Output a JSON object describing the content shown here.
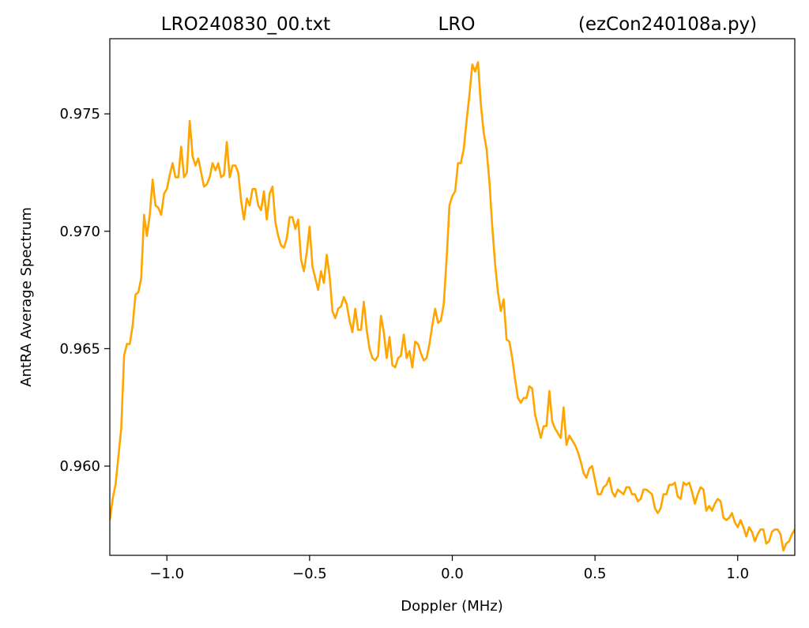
{
  "chart_data": {
    "type": "line",
    "title_left": "LRO240830_00.txt",
    "title_center": "LRO",
    "title_right": "(ezCon240108a.py)",
    "xlabel": "Doppler (MHz)",
    "ylabel": "AntRA Average Spectrum",
    "xlim": [
      -1.2,
      1.2
    ],
    "ylim": [
      0.9562,
      0.9782
    ],
    "x_ticks": [
      -1.0,
      -0.5,
      0.0,
      0.5,
      1.0
    ],
    "x_tick_labels": [
      "−1.0",
      "−0.5",
      "0.0",
      "0.5",
      "1.0"
    ],
    "y_ticks": [
      0.96,
      0.965,
      0.97,
      0.975
    ],
    "y_tick_labels": [
      "0.960",
      "0.965",
      "0.970",
      "0.975"
    ],
    "grid": false,
    "line_color": "#FFA500",
    "series": [
      {
        "x": [
          -1.2,
          -1.19,
          -1.18,
          -1.17,
          -1.16,
          -1.15,
          -1.14,
          -1.13,
          -1.12,
          -1.11,
          -1.1,
          -1.09,
          -1.08,
          -1.07,
          -1.06,
          -1.05,
          -1.04,
          -1.03,
          -1.02,
          -1.01,
          -1.0,
          -0.99,
          -0.98,
          -0.97,
          -0.96,
          -0.95,
          -0.94,
          -0.93,
          -0.92,
          -0.91,
          -0.9,
          -0.89,
          -0.88,
          -0.87,
          -0.86,
          -0.85,
          -0.84,
          -0.83,
          -0.82,
          -0.81,
          -0.8,
          -0.79,
          -0.78,
          -0.77,
          -0.76,
          -0.75,
          -0.74,
          -0.73,
          -0.72,
          -0.71,
          -0.7,
          -0.69,
          -0.68,
          -0.67,
          -0.66,
          -0.65,
          -0.64,
          -0.63,
          -0.62,
          -0.61,
          -0.6,
          -0.59,
          -0.58,
          -0.57,
          -0.56,
          -0.55,
          -0.54,
          -0.53,
          -0.52,
          -0.51,
          -0.5,
          -0.49,
          -0.48,
          -0.47,
          -0.46,
          -0.45,
          -0.44,
          -0.43,
          -0.42,
          -0.41,
          -0.4,
          -0.39,
          -0.38,
          -0.37,
          -0.36,
          -0.35,
          -0.34,
          -0.33,
          -0.32,
          -0.31,
          -0.3,
          -0.29,
          -0.28,
          -0.27,
          -0.26,
          -0.25,
          -0.24,
          -0.23,
          -0.22,
          -0.21,
          -0.2,
          -0.19,
          -0.18,
          -0.17,
          -0.16,
          -0.15,
          -0.14,
          -0.13,
          -0.12,
          -0.11,
          -0.1,
          -0.09,
          -0.08,
          -0.07,
          -0.06,
          -0.05,
          -0.04,
          -0.03,
          -0.02,
          -0.01,
          0.0,
          0.01,
          0.02,
          0.03,
          0.04,
          0.05,
          0.06,
          0.07,
          0.08,
          0.09,
          0.1,
          0.11,
          0.12,
          0.13,
          0.14,
          0.15,
          0.16,
          0.17,
          0.18,
          0.19,
          0.2,
          0.21,
          0.22,
          0.23,
          0.24,
          0.25,
          0.26,
          0.27,
          0.28,
          0.29,
          0.3,
          0.31,
          0.32,
          0.33,
          0.34,
          0.35,
          0.36,
          0.37,
          0.38,
          0.39,
          0.4,
          0.41,
          0.42,
          0.43,
          0.44,
          0.45,
          0.46,
          0.47,
          0.48,
          0.49,
          0.5,
          0.51,
          0.52,
          0.53,
          0.54,
          0.55,
          0.56,
          0.57,
          0.58,
          0.59,
          0.6,
          0.61,
          0.62,
          0.63,
          0.64,
          0.65,
          0.66,
          0.67,
          0.68,
          0.69,
          0.7,
          0.71,
          0.72,
          0.73,
          0.74,
          0.75,
          0.76,
          0.77,
          0.78,
          0.79,
          0.8,
          0.81,
          0.82,
          0.83,
          0.84,
          0.85,
          0.86,
          0.87,
          0.88,
          0.89,
          0.9,
          0.91,
          0.92,
          0.93,
          0.94,
          0.95,
          0.96,
          0.97,
          0.98,
          0.99,
          1.0,
          1.01,
          1.02,
          1.03,
          1.04,
          1.05,
          1.06,
          1.07,
          1.08,
          1.09,
          1.1,
          1.11,
          1.12,
          1.13,
          1.14,
          1.15,
          1.16,
          1.17,
          1.18,
          1.19,
          1.2
        ],
        "values": [
          0.9577,
          0.9586,
          0.9592,
          0.9604,
          0.9616,
          0.9647,
          0.9652,
          0.9652,
          0.966,
          0.9673,
          0.9674,
          0.968,
          0.9707,
          0.9698,
          0.9707,
          0.9722,
          0.9711,
          0.971,
          0.9707,
          0.9716,
          0.9718,
          0.9724,
          0.9729,
          0.9723,
          0.9723,
          0.9736,
          0.9723,
          0.9725,
          0.9747,
          0.9732,
          0.9728,
          0.9731,
          0.9725,
          0.9719,
          0.972,
          0.9723,
          0.9729,
          0.9726,
          0.9729,
          0.9723,
          0.9724,
          0.9738,
          0.9723,
          0.9728,
          0.9728,
          0.9725,
          0.9713,
          0.9705,
          0.9714,
          0.9711,
          0.9718,
          0.9718,
          0.9711,
          0.9709,
          0.9717,
          0.9705,
          0.9716,
          0.9719,
          0.9704,
          0.9698,
          0.9694,
          0.9693,
          0.9697,
          0.9706,
          0.9706,
          0.9701,
          0.9705,
          0.9688,
          0.9683,
          0.9691,
          0.9702,
          0.9685,
          0.968,
          0.9675,
          0.9683,
          0.9678,
          0.969,
          0.9681,
          0.9666,
          0.9663,
          0.9667,
          0.9668,
          0.9672,
          0.9669,
          0.9662,
          0.9657,
          0.9667,
          0.9658,
          0.9658,
          0.967,
          0.9658,
          0.965,
          0.9646,
          0.9645,
          0.9647,
          0.9664,
          0.9657,
          0.9646,
          0.9655,
          0.9643,
          0.9642,
          0.9646,
          0.9647,
          0.9656,
          0.9646,
          0.9649,
          0.9642,
          0.9653,
          0.9652,
          0.9648,
          0.9645,
          0.9646,
          0.9652,
          0.966,
          0.9667,
          0.9661,
          0.9662,
          0.9669,
          0.9688,
          0.9711,
          0.9715,
          0.9717,
          0.9729,
          0.9729,
          0.9735,
          0.9747,
          0.9758,
          0.9771,
          0.9768,
          0.9772,
          0.9754,
          0.9742,
          0.9735,
          0.9721,
          0.9702,
          0.9686,
          0.9674,
          0.9666,
          0.9671,
          0.9654,
          0.9653,
          0.9646,
          0.9637,
          0.9629,
          0.9627,
          0.9629,
          0.9629,
          0.9634,
          0.9633,
          0.9622,
          0.9617,
          0.9612,
          0.9617,
          0.9617,
          0.9632,
          0.9619,
          0.9616,
          0.9614,
          0.9612,
          0.9625,
          0.9609,
          0.9613,
          0.9611,
          0.9609,
          0.9606,
          0.9602,
          0.9597,
          0.9595,
          0.9599,
          0.96,
          0.9594,
          0.9588,
          0.9588,
          0.9591,
          0.9592,
          0.9595,
          0.9589,
          0.9587,
          0.959,
          0.9589,
          0.9588,
          0.9591,
          0.9591,
          0.9588,
          0.9588,
          0.9585,
          0.9586,
          0.959,
          0.959,
          0.9589,
          0.9588,
          0.9582,
          0.958,
          0.9582,
          0.9588,
          0.9588,
          0.9592,
          0.9592,
          0.9593,
          0.9587,
          0.9586,
          0.9593,
          0.9592,
          0.9593,
          0.9589,
          0.9584,
          0.9588,
          0.9591,
          0.959,
          0.9581,
          0.9583,
          0.9581,
          0.9584,
          0.9586,
          0.9585,
          0.9578,
          0.9577,
          0.9578,
          0.958,
          0.9576,
          0.9574,
          0.9577,
          0.9574,
          0.957,
          0.9574,
          0.9572,
          0.9568,
          0.9571,
          0.9573,
          0.9573,
          0.9567,
          0.9568,
          0.9572,
          0.9573,
          0.9573,
          0.9571,
          0.9564,
          0.9567,
          0.9568,
          0.9571,
          0.9573
        ]
      }
    ]
  }
}
